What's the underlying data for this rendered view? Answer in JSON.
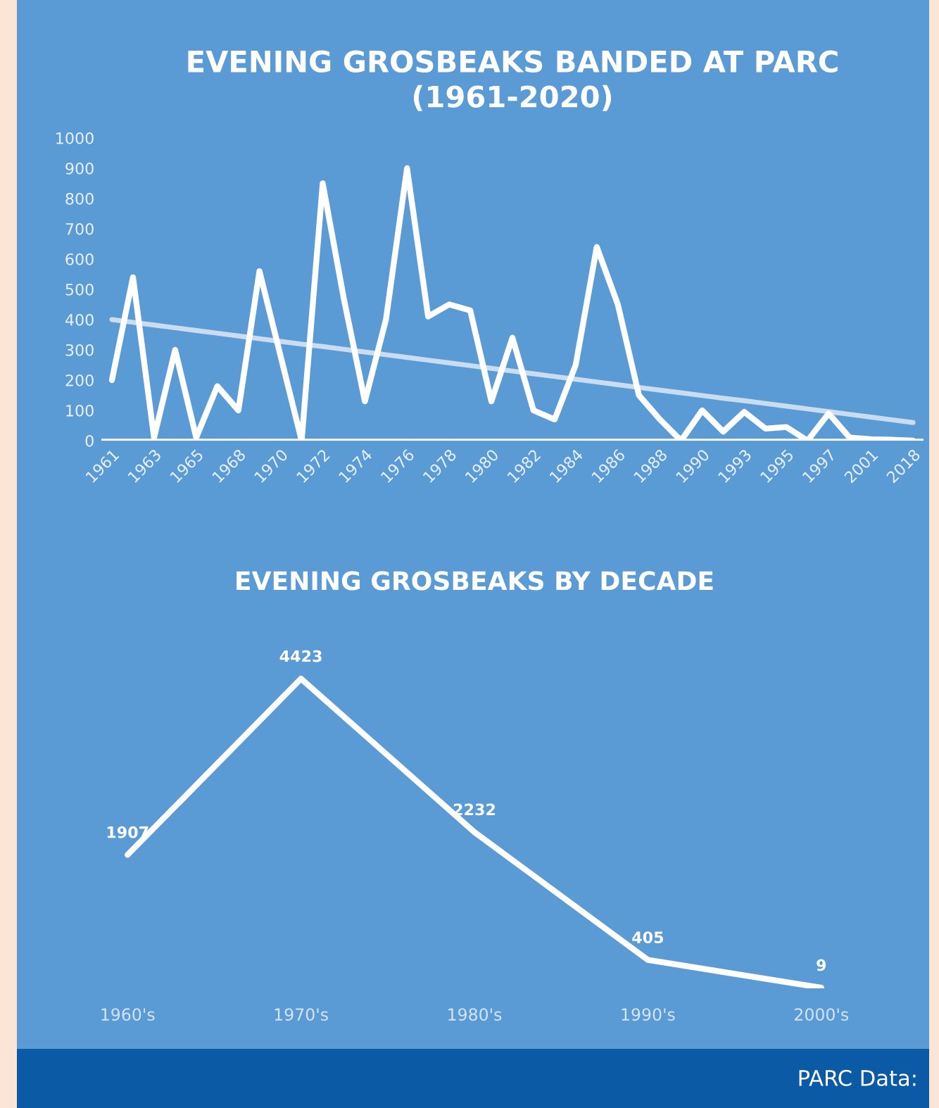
{
  "chart_data": [
    {
      "type": "line",
      "title": "EVENING GROSBEAKS BANDED AT PARC\n(1961-2020)",
      "categories": [
        "1961",
        null,
        "1963",
        null,
        "1965",
        null,
        "1968",
        null,
        "1970",
        null,
        "1972",
        null,
        "1974",
        null,
        "1976",
        null,
        "1978",
        null,
        "1980",
        null,
        "1982",
        null,
        "1984",
        null,
        "1986",
        null,
        "1988",
        null,
        "1990",
        null,
        "1993",
        null,
        "1995",
        null,
        "1997",
        null,
        "2001",
        null,
        "2018"
      ],
      "series": [
        {
          "color": "#ffffff",
          "values": [
            200,
            540,
            10,
            300,
            10,
            180,
            100,
            560,
            280,
            0,
            850,
            470,
            130,
            400,
            900,
            410,
            450,
            430,
            130,
            340,
            100,
            70,
            250,
            640,
            450,
            150,
            70,
            0,
            100,
            30,
            95,
            40,
            45,
            0,
            90,
            10,
            5,
            3,
            0
          ]
        },
        {
          "type": "line",
          "color": "#c9dcf0",
          "values": [
            400,
            391,
            382,
            373,
            364,
            355,
            346,
            337,
            328,
            319,
            311,
            302,
            293,
            284,
            275,
            266,
            257,
            248,
            239,
            230,
            221,
            212,
            203,
            194,
            185,
            176,
            167,
            158,
            149,
            140,
            132,
            123,
            114,
            105,
            96,
            87,
            78,
            69,
            60
          ]
        }
      ],
      "ylim": [
        0,
        1000
      ],
      "yticks": [
        0,
        100,
        200,
        300,
        400,
        500,
        600,
        700,
        800,
        900,
        1000
      ],
      "grid": false,
      "marker": "none",
      "line_style": "solid"
    },
    {
      "type": "line",
      "title": "EVENING GROSBEAKS BY DECADE",
      "categories": [
        "1960's",
        "1970's",
        "1980's",
        "1990's",
        "2000's"
      ],
      "series": [
        {
          "color": "#ffffff",
          "values": [
            1907,
            4423,
            2232,
            405,
            9
          ]
        }
      ],
      "data_labels": true,
      "tick_labels": "x",
      "grid": false,
      "marker": "none",
      "line_style": "solid",
      "annotations": [
        "PARC Data:"
      ]
    }
  ]
}
